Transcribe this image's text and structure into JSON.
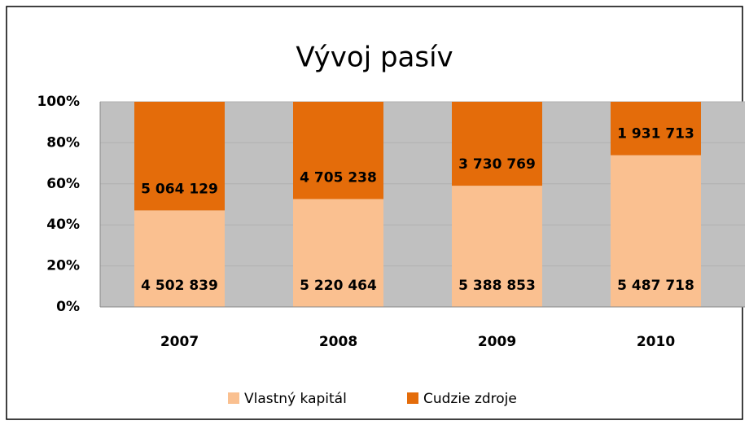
{
  "chart_data": {
    "type": "bar",
    "stacking": "percent",
    "title": "Vývoj pasív",
    "categories": [
      "2007",
      "2008",
      "2009",
      "2010"
    ],
    "series": [
      {
        "name": "Vlastný kapitál",
        "color": "#fac090",
        "values": [
          4502839,
          5220464,
          5388853,
          5487718
        ],
        "value_labels": [
          "4 502 839",
          "5 220 464",
          "5 388 853",
          "5 487 718"
        ]
      },
      {
        "name": "Cudzie zdroje",
        "color": "#e46c0a",
        "values": [
          5064129,
          4705238,
          3730769,
          1931713
        ],
        "value_labels": [
          "5 064 129",
          "4 705 238",
          "3 730 769",
          "1 931 713"
        ]
      }
    ],
    "ylim": [
      0,
      100
    ],
    "yticks": [
      {
        "value": 0,
        "label": "0%"
      },
      {
        "value": 20,
        "label": "20%"
      },
      {
        "value": 40,
        "label": "40%"
      },
      {
        "value": 60,
        "label": "60%"
      },
      {
        "value": 80,
        "label": "80%"
      },
      {
        "value": 100,
        "label": "100%"
      }
    ],
    "grid": true,
    "legend": "bottom"
  }
}
